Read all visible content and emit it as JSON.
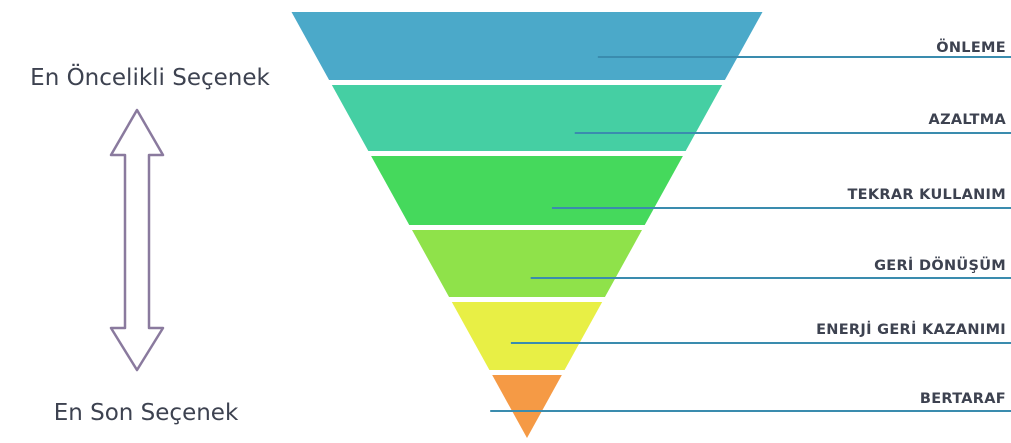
{
  "diagram": {
    "top_label": "En Öncelikli Seçenek",
    "bottom_label": "En Son Seçenek",
    "levels": [
      {
        "label": "ÖNLEME",
        "color": "#4ba9c9"
      },
      {
        "label": "AZALTMA",
        "color": "#45cfa3"
      },
      {
        "label": "TEKRAR KULLANIM",
        "color": "#45d95c"
      },
      {
        "label": "GERİ DÖNÜŞÜM",
        "color": "#8fe24a"
      },
      {
        "label": "ENERJİ GERİ KAZANIMI",
        "color": "#e8ef45"
      },
      {
        "label": "BERTARAF",
        "color": "#f59a45"
      }
    ],
    "arrow_color": "#8a7a9e",
    "line_color": "#3a8cae"
  }
}
